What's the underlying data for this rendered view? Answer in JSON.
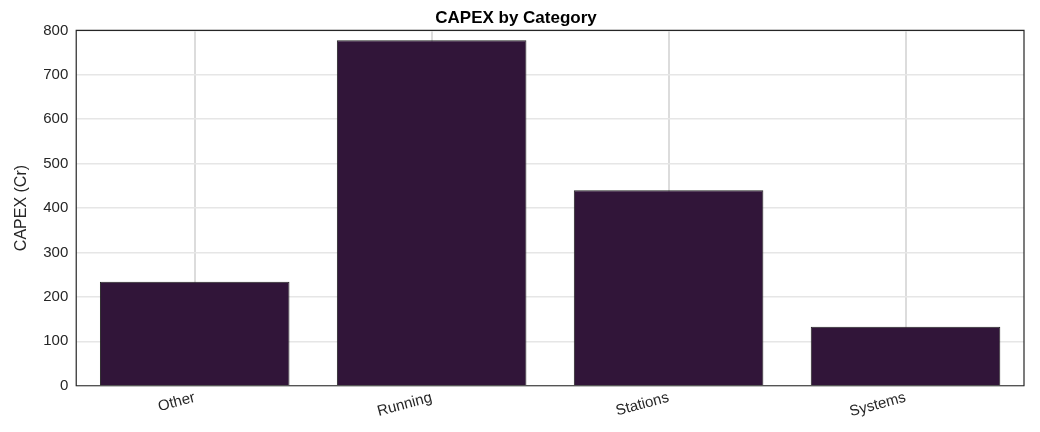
{
  "chart_data": {
    "type": "bar",
    "title": "CAPEX by Category",
    "ylabel": "CAPEX (Cr)",
    "categories": [
      "Other",
      "Running",
      "Stations",
      "Systems"
    ],
    "values": [
      234,
      778,
      440,
      133
    ],
    "color": "#311539",
    "ylim": [
      0,
      800
    ],
    "yticks": [
      0,
      100,
      200,
      300,
      400,
      500,
      600,
      700,
      800
    ],
    "grid": true,
    "legend": false
  }
}
